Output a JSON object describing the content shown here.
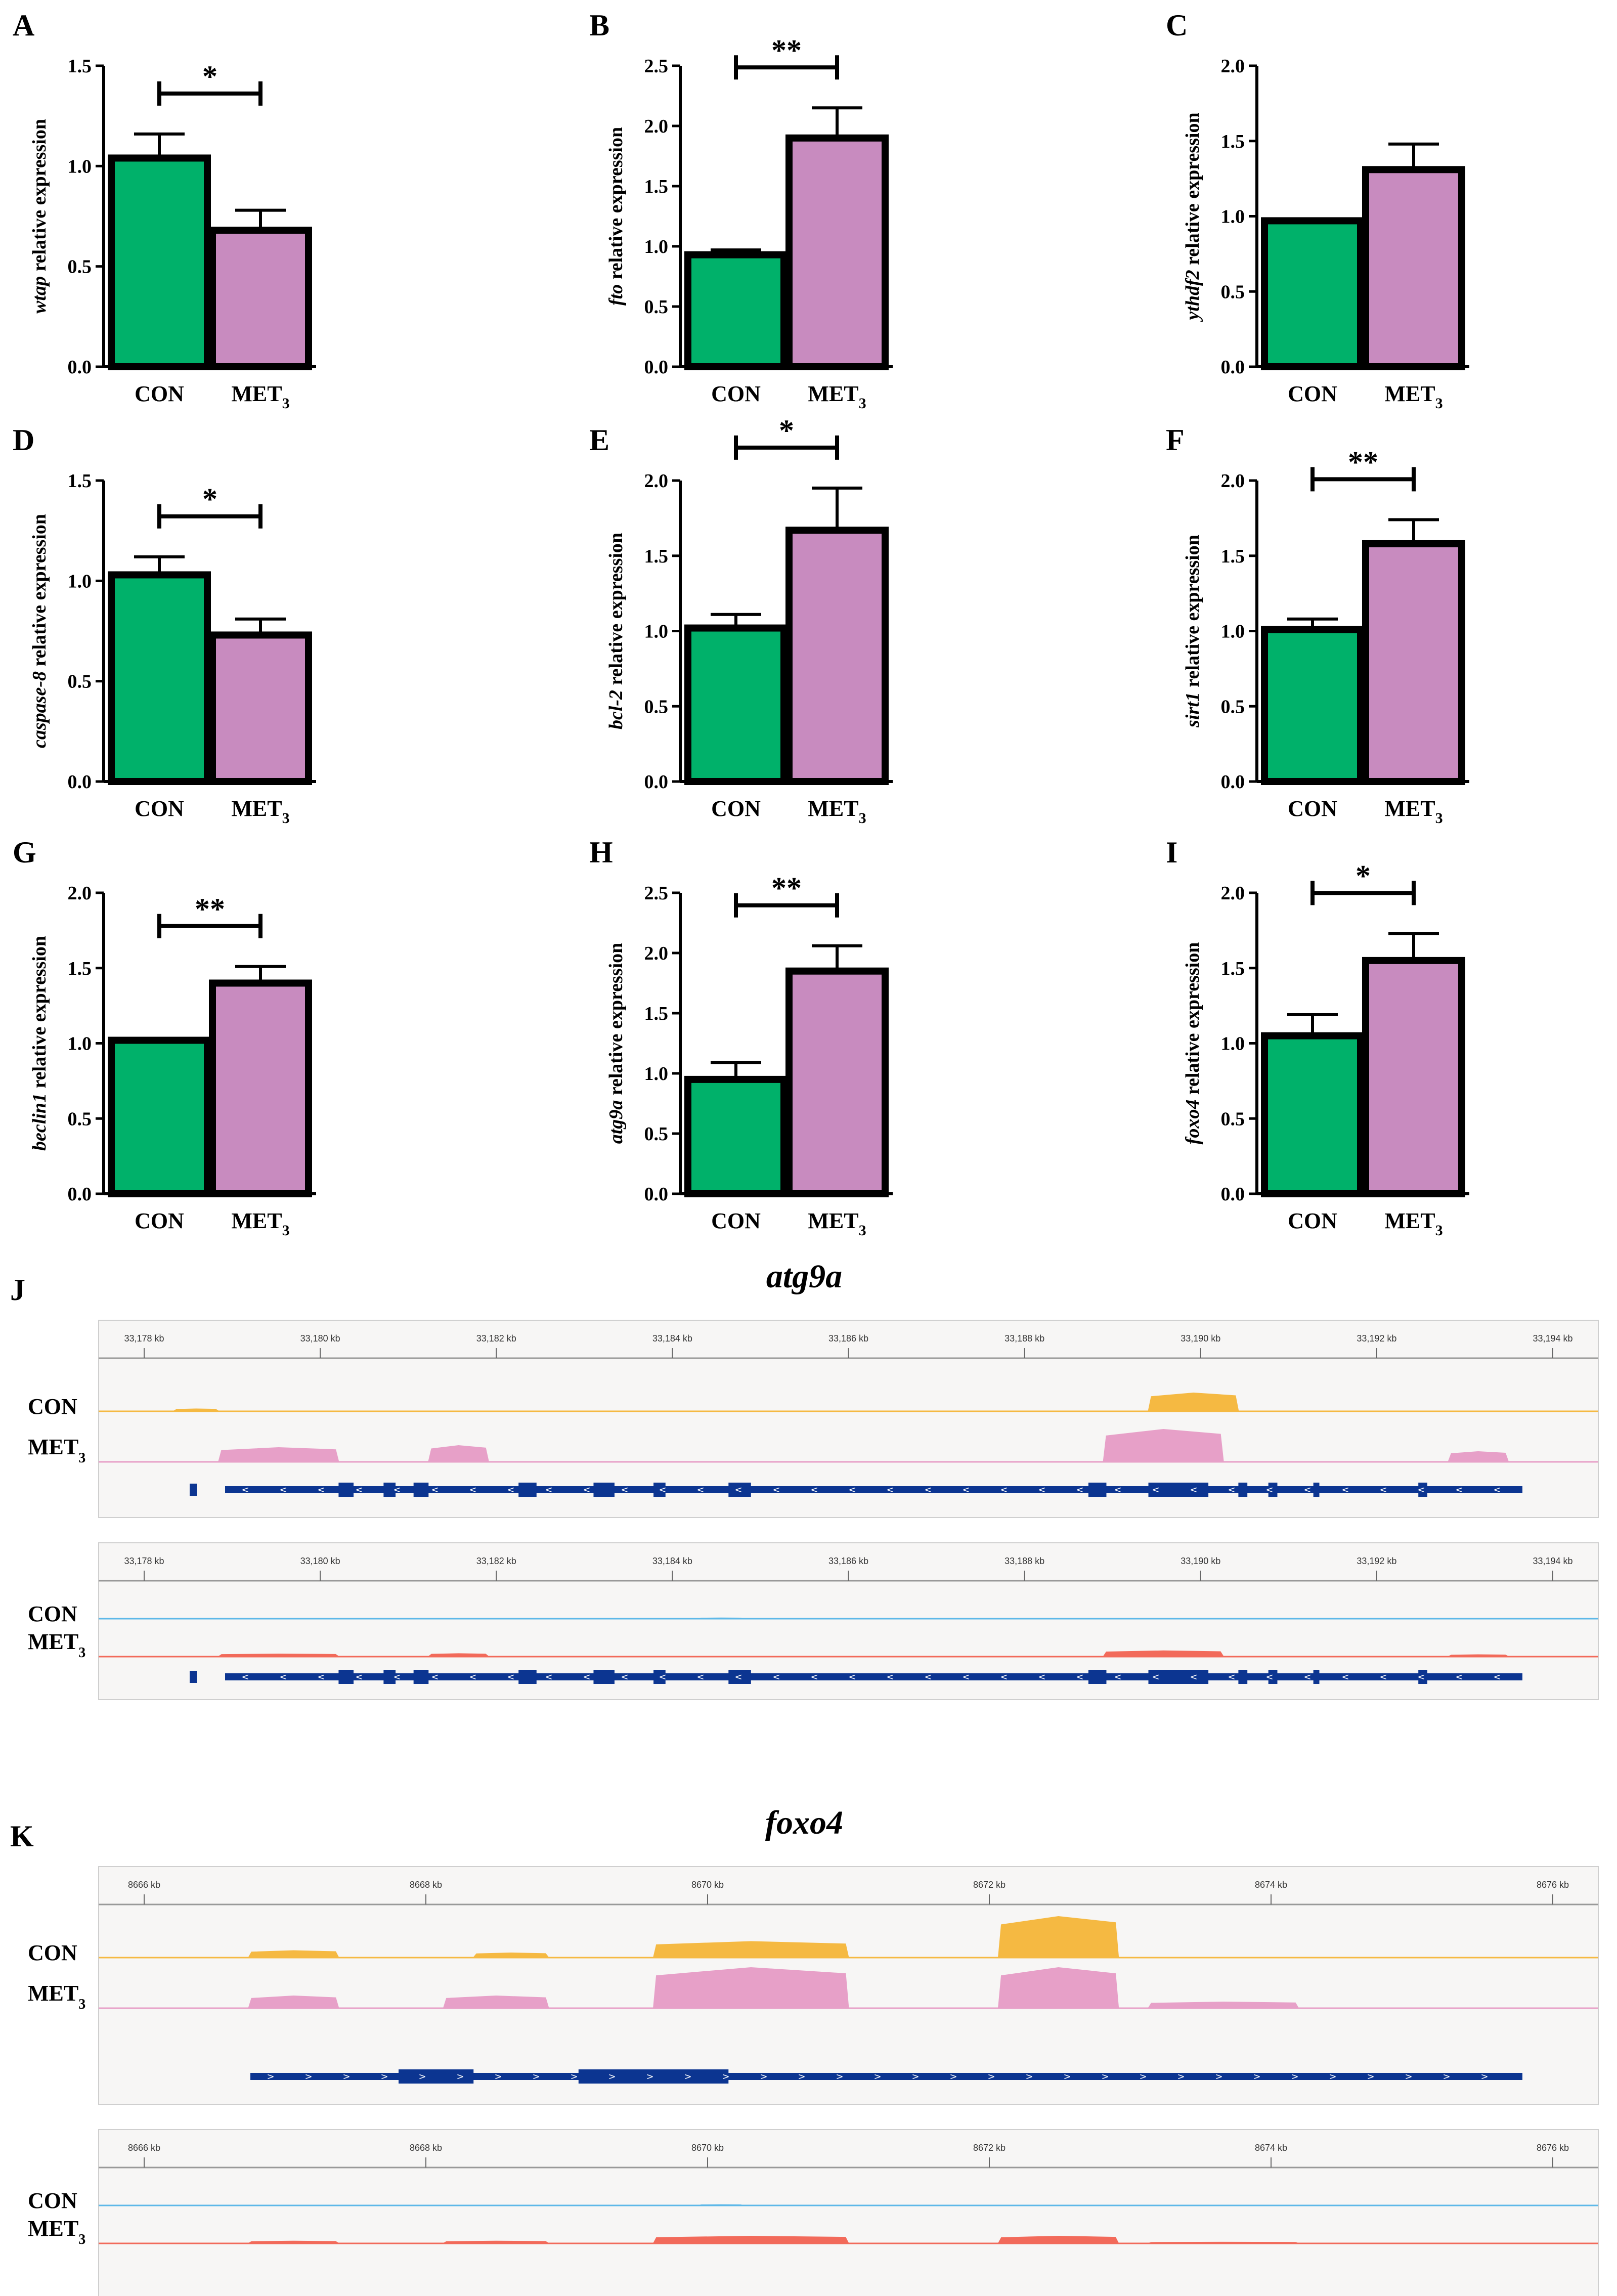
{
  "colors": {
    "con": "#00b16a",
    "met": "#c88bbf",
    "con_track": "#f5b942",
    "met_track": "#e7a0c8",
    "con_track2": "#5db8e8",
    "met_track2": "#f26a5a",
    "gene": "#0c3591"
  },
  "bar_charts": [
    {
      "panel": "A",
      "gene": "wtap",
      "ylabel": " relative expression",
      "categories": [
        "CON",
        "MET"
      ],
      "subscript": "3",
      "values": [
        1.04,
        0.68
      ],
      "errors": [
        0.12,
        0.1
      ],
      "ylim": [
        0,
        1.5
      ],
      "ticks": [
        "0.0",
        "0.5",
        "1.0",
        "1.5"
      ],
      "sig": "*"
    },
    {
      "panel": "B",
      "gene": "fto",
      "ylabel": " relative expression",
      "categories": [
        "CON",
        "MET"
      ],
      "subscript": "3",
      "values": [
        0.93,
        1.9
      ],
      "errors": [
        0.04,
        0.25
      ],
      "ylim": [
        0,
        2.5
      ],
      "ticks": [
        "0.0",
        "0.5",
        "1.0",
        "1.5",
        "2.0",
        "2.5"
      ],
      "sig": "**"
    },
    {
      "panel": "C",
      "gene": "ythdf2",
      "ylabel": " relative expression",
      "categories": [
        "CON",
        "MET"
      ],
      "subscript": "3",
      "values": [
        0.97,
        1.31
      ],
      "errors": [
        0.0,
        0.17
      ],
      "ylim": [
        0,
        2.0
      ],
      "ticks": [
        "0.0",
        "0.5",
        "1.0",
        "1.5",
        "2.0"
      ],
      "sig": ""
    },
    {
      "panel": "D",
      "gene": "caspase-8",
      "ylabel": " relative expression",
      "categories": [
        "CON",
        "MET"
      ],
      "subscript": "3",
      "values": [
        1.03,
        0.73
      ],
      "errors": [
        0.09,
        0.08
      ],
      "ylim": [
        0,
        1.5
      ],
      "ticks": [
        "0.0",
        "0.5",
        "1.0",
        "1.5"
      ],
      "sig": "*"
    },
    {
      "panel": "E",
      "gene": "bcl-2",
      "ylabel": " relative expression",
      "categories": [
        "CON",
        "MET"
      ],
      "subscript": "3",
      "values": [
        1.02,
        1.67
      ],
      "errors": [
        0.09,
        0.28
      ],
      "ylim": [
        0,
        2.0
      ],
      "ticks": [
        "0.0",
        "0.5",
        "1.0",
        "1.5",
        "2.0"
      ],
      "sig": "*"
    },
    {
      "panel": "F",
      "gene": "sirt1",
      "ylabel": " relative expression",
      "categories": [
        "CON",
        "MET"
      ],
      "subscript": "3",
      "values": [
        1.01,
        1.58
      ],
      "errors": [
        0.07,
        0.16
      ],
      "ylim": [
        0,
        2.0
      ],
      "ticks": [
        "0.0",
        "0.5",
        "1.0",
        "1.5",
        "2.0"
      ],
      "sig": "**"
    },
    {
      "panel": "G",
      "gene": "beclin1",
      "ylabel": " relative expression",
      "categories": [
        "CON",
        "MET"
      ],
      "subscript": "3",
      "values": [
        1.02,
        1.4
      ],
      "errors": [
        0.0,
        0.11
      ],
      "ylim": [
        0,
        2.0
      ],
      "ticks": [
        "0.0",
        "0.5",
        "1.0",
        "1.5",
        "2.0"
      ],
      "sig": "**"
    },
    {
      "panel": "H",
      "gene": "atg9a",
      "ylabel": " relative expression",
      "categories": [
        "CON",
        "MET"
      ],
      "subscript": "3",
      "values": [
        0.95,
        1.85
      ],
      "errors": [
        0.14,
        0.21
      ],
      "ylim": [
        0,
        2.5
      ],
      "ticks": [
        "0.0",
        "0.5",
        "1.0",
        "1.5",
        "2.0",
        "2.5"
      ],
      "sig": "**"
    },
    {
      "panel": "I",
      "gene": "foxo4",
      "ylabel": " relative expression",
      "categories": [
        "CON",
        "MET"
      ],
      "subscript": "3",
      "values": [
        1.05,
        1.55
      ],
      "errors": [
        0.14,
        0.18
      ],
      "ylim": [
        0,
        2.0
      ],
      "ticks": [
        "0.0",
        "0.5",
        "1.0",
        "1.5",
        "2.0"
      ],
      "sig": "*"
    }
  ],
  "tracks": [
    {
      "panel": "J",
      "title": "atg9a",
      "blocks": [
        {
          "ticks": [
            "33,178 kb",
            "33,180 kb",
            "33,182 kb",
            "33,184 kb",
            "33,186 kb",
            "33,188 kb",
            "33,190 kb",
            "33,192 kb",
            "33,194 kb"
          ],
          "labels": [
            "CON",
            "MET"
          ],
          "style": "a",
          "dir": "<"
        },
        {
          "ticks": [
            "33,178 kb",
            "33,180 kb",
            "33,182 kb",
            "33,184 kb",
            "33,186 kb",
            "33,188 kb",
            "33,190 kb",
            "33,192 kb",
            "33,194 kb"
          ],
          "labels": [
            "CON",
            "MET"
          ],
          "style": "b",
          "dir": "<"
        }
      ]
    },
    {
      "panel": "K",
      "title": "foxo4",
      "blocks": [
        {
          "ticks": [
            "8666 kb",
            "8668 kb",
            "8670 kb",
            "8672 kb",
            "8674 kb",
            "8676 kb"
          ],
          "labels": [
            "CON",
            "MET"
          ],
          "style": "a",
          "dir": ">"
        },
        {
          "ticks": [
            "8666 kb",
            "8668 kb",
            "8670 kb",
            "8672 kb",
            "8674 kb",
            "8676 kb"
          ],
          "labels": [
            "CON",
            "MET"
          ],
          "style": "b",
          "dir": ">"
        }
      ]
    }
  ]
}
